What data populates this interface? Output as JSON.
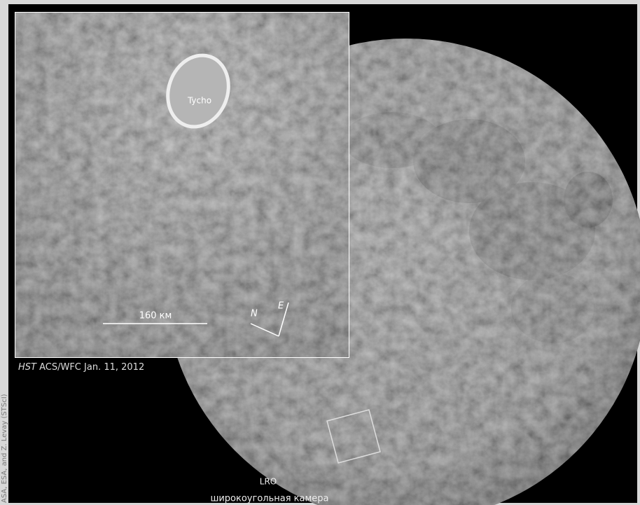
{
  "credit": "ASA, ESA, and Z. Levay (STScI)",
  "inset": {
    "crater_label": "Tycho",
    "scale_label": "160 км",
    "north_label": "N",
    "east_label": "E",
    "caption_instrument": "HST",
    "caption_rest": " ACS/WFC Jan. 11, 2012"
  },
  "moon": {
    "label": "LRO",
    "sublabel": "широкоугольная камера"
  }
}
